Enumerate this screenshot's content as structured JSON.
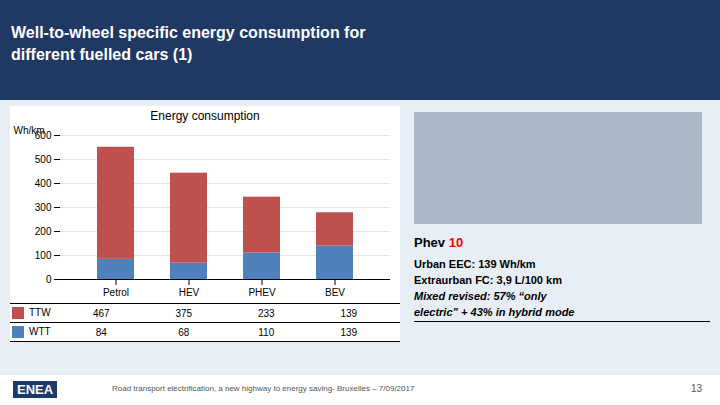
{
  "chart_data": {
    "type": "bar",
    "stacked": true,
    "title": "Well-to-wheel specific energy consumption for\ndifferent fuelled cars (1)",
    "subtitle": "Energy consumption",
    "categories": [
      "Petrol",
      "HEV",
      "PHEV",
      "BEV"
    ],
    "series": [
      {
        "name": "WTT",
        "color": "#4f81bd",
        "values": [
          84,
          68,
          110,
          139
        ]
      },
      {
        "name": "TTW",
        "color": "#c0504d",
        "values": [
          467,
          375,
          233,
          139
        ]
      }
    ],
    "ylabel": "Wh/km",
    "ylim": [
      0,
      600
    ],
    "yticks": [
      0,
      100,
      200,
      300,
      400,
      500,
      600
    ],
    "grid": true,
    "annotations": [
      "Phev",
      "10",
      "Urban EEC: 139 Wh/km",
      "Extraurban FC: 3,9 L/100 km",
      "Mixed revised: 57% “only",
      "electric” + 43% in hybrid mode",
      "ENEA",
      "Road transport electrification, a new highway to energy saving- Bruxelles – 7/09/2017",
      "13"
    ]
  }
}
